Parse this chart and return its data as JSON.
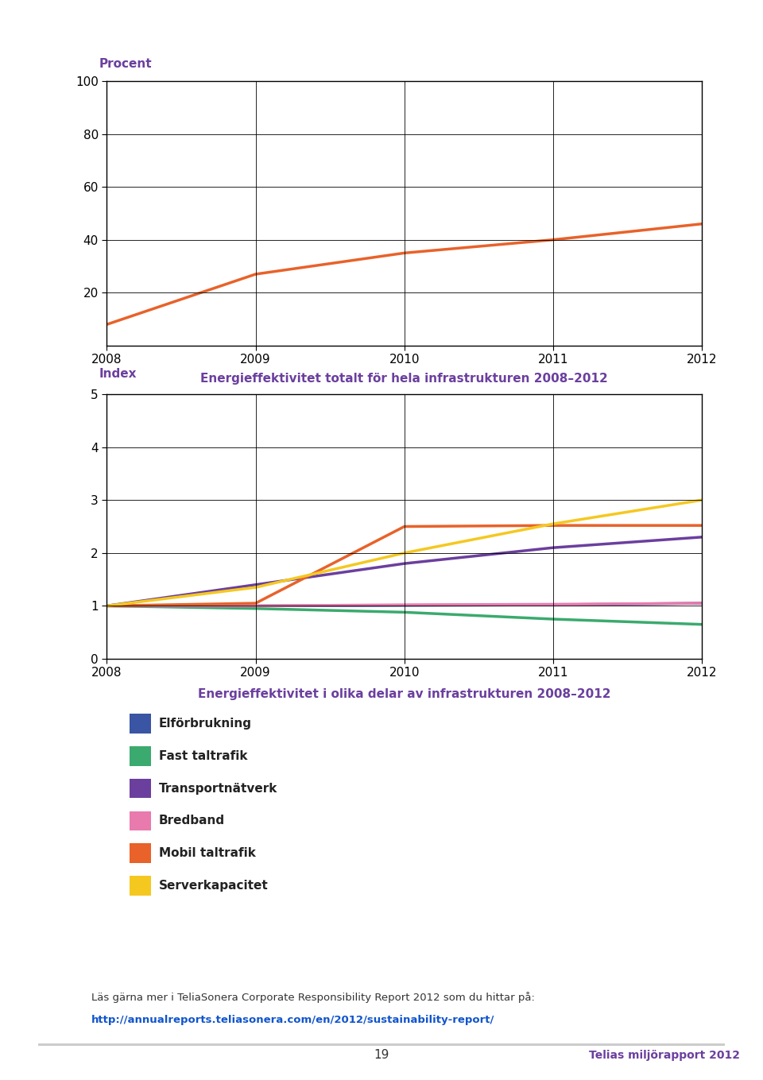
{
  "chart1": {
    "ylabel": "Procent",
    "years": [
      2008,
      2009,
      2010,
      2011,
      2012
    ],
    "values": [
      8,
      27,
      35,
      40,
      46
    ],
    "line_color": "#E8622A",
    "ylim": [
      0,
      100
    ],
    "yticks": [
      20,
      40,
      60,
      80,
      100
    ],
    "title": "Energieffektivitet totalt för hela infrastrukturen 2008–2012"
  },
  "chart2": {
    "ylabel": "Index",
    "years": [
      2008,
      2009,
      2010,
      2011,
      2012
    ],
    "series": [
      {
        "name": "Elförbrukning",
        "values": [
          1.0,
          1.0,
          1.01,
          1.02,
          1.05
        ],
        "color": "#3955A3"
      },
      {
        "name": "Fast taltrafik",
        "values": [
          1.0,
          0.95,
          0.88,
          0.75,
          0.65
        ],
        "color": "#3BAA6E"
      },
      {
        "name": "Transportnätverk",
        "values": [
          1.0,
          1.4,
          1.8,
          2.1,
          2.3
        ],
        "color": "#6B3F9E"
      },
      {
        "name": "Bredband",
        "values": [
          1.0,
          1.0,
          1.02,
          1.03,
          1.05
        ],
        "color": "#E87AAE"
      },
      {
        "name": "Mobil taltrafik",
        "values": [
          1.0,
          1.05,
          2.5,
          2.52,
          2.52
        ],
        "color": "#E8622A"
      },
      {
        "name": "Serverkapacitet",
        "values": [
          1.0,
          1.35,
          2.0,
          2.55,
          3.0
        ],
        "color": "#F5C820"
      }
    ],
    "ylim": [
      0,
      5
    ],
    "yticks": [
      0,
      1,
      2,
      3,
      4,
      5
    ],
    "title": "Energieffektivitet i olika delar av infrastrukturen 2008–2012"
  },
  "footer_text": "Läs gärna mer i TeliaSonera Corporate Responsibility Report 2012 som du hittar på:",
  "footer_url": "http://annualreports.teliasonera.com/en/2012/sustainability-report/",
  "page_number": "19",
  "page_right": "Telias miljörapport 2012",
  "title_color": "#6B3F9E",
  "label_color": "#6B3F9E",
  "background_color": "#FFFFFF",
  "tick_fontsize": 11,
  "title_fontsize": 11,
  "legend_fontsize": 11,
  "axis_label_fontsize": 11
}
